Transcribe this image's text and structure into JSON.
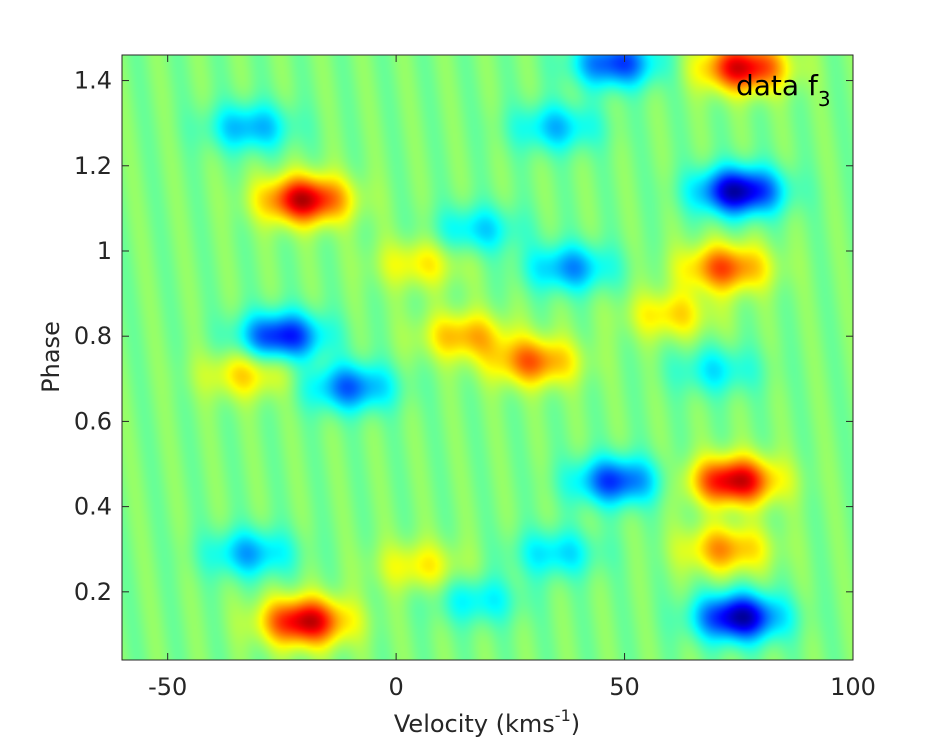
{
  "chart_data": {
    "type": "heatmap",
    "title": "",
    "annotation": {
      "text": "data f",
      "subscript": "3"
    },
    "xlabel": {
      "text": "Velocity (kms",
      "superscript": "-1",
      "suffix": ")"
    },
    "ylabel": "Phase",
    "xlim": [
      -60,
      100
    ],
    "ylim": [
      0.04,
      1.46
    ],
    "xticks": [
      -50,
      0,
      50,
      100
    ],
    "xtick_labels": [
      "-50",
      "0",
      "50",
      "100"
    ],
    "yticks": [
      0.2,
      0.4,
      0.6,
      0.8,
      1.0,
      1.2,
      1.4
    ],
    "ytick_labels": [
      "0.2",
      "0.4",
      "0.6",
      "0.8",
      "1",
      "1.2",
      "1.4"
    ],
    "colormap": "jet",
    "value_range": [
      -1,
      1
    ],
    "background_value": 0.0,
    "grid": false,
    "features": [
      {
        "x": -20,
        "y": 1.12,
        "amplitude": 0.95
      },
      {
        "x": -20,
        "y": 0.13,
        "amplitude": 0.95
      },
      {
        "x": 75,
        "y": 1.14,
        "amplitude": -1.0
      },
      {
        "x": 75,
        "y": 0.14,
        "amplitude": -1.0
      },
      {
        "x": 74,
        "y": 0.46,
        "amplitude": 0.95
      },
      {
        "x": 76,
        "y": 1.43,
        "amplitude": 0.9
      },
      {
        "x": 72,
        "y": 0.96,
        "amplitude": 0.65
      },
      {
        "x": 72,
        "y": 0.3,
        "amplitude": 0.5
      },
      {
        "x": 30,
        "y": 0.74,
        "amplitude": 0.6
      },
      {
        "x": 15,
        "y": 0.8,
        "amplitude": 0.45
      },
      {
        "x": -25,
        "y": 0.8,
        "amplitude": -0.8
      },
      {
        "x": -10,
        "y": 0.68,
        "amplitude": -0.6
      },
      {
        "x": -33,
        "y": 0.71,
        "amplitude": 0.35
      },
      {
        "x": 48,
        "y": 0.46,
        "amplitude": -0.7
      },
      {
        "x": 48,
        "y": 1.44,
        "amplitude": -0.7
      },
      {
        "x": 38,
        "y": 0.96,
        "amplitude": -0.5
      },
      {
        "x": -32,
        "y": 1.29,
        "amplitude": -0.45
      },
      {
        "x": -32,
        "y": 0.29,
        "amplitude": -0.45
      },
      {
        "x": 35,
        "y": 1.29,
        "amplitude": -0.4
      },
      {
        "x": 35,
        "y": 0.29,
        "amplitude": -0.35
      },
      {
        "x": 18,
        "y": 1.05,
        "amplitude": -0.35
      },
      {
        "x": 18,
        "y": 0.18,
        "amplitude": -0.3
      },
      {
        "x": 5,
        "y": 0.97,
        "amplitude": 0.3
      },
      {
        "x": 5,
        "y": 0.26,
        "amplitude": 0.3
      },
      {
        "x": 60,
        "y": 0.85,
        "amplitude": 0.35
      },
      {
        "x": 70,
        "y": 0.72,
        "amplitude": -0.3
      }
    ]
  }
}
